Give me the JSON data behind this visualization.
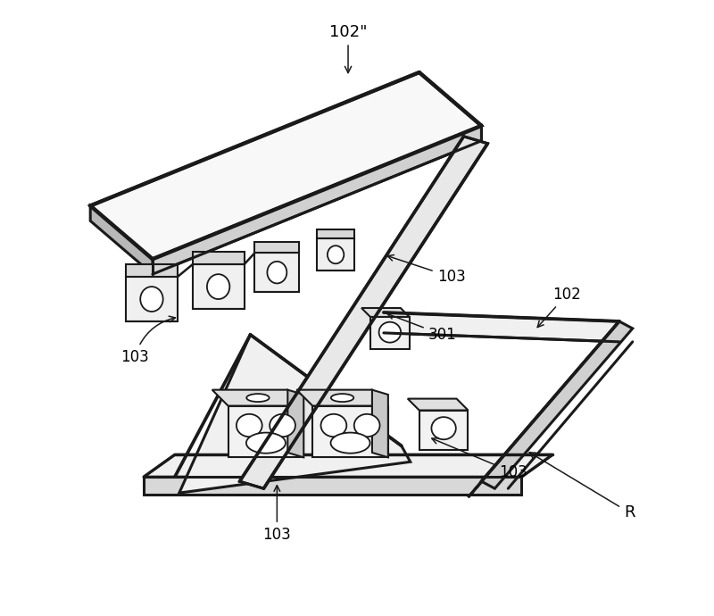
{
  "bg": "#ffffff",
  "lc": "#1a1a1a",
  "lw": 2.2,
  "lw_thin": 1.5,
  "fc_white": "#ffffff",
  "fc_light": "#f5f5f5",
  "fc_mid": "#e0e0e0",
  "fc_dark": "#c8c8c8",
  "label_102pp": "102\"",
  "label_103": "103",
  "label_301": "301",
  "label_102": "102",
  "label_R": "R",
  "fs": 12
}
